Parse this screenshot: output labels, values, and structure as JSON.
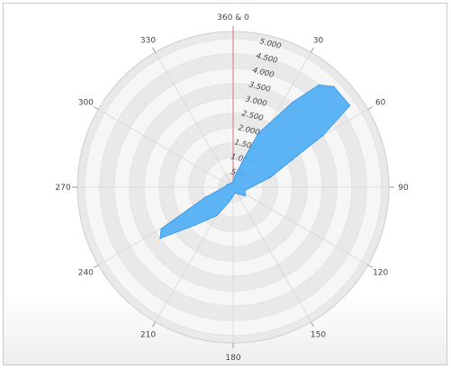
{
  "chart_data": {
    "type": "polar-area",
    "title": "",
    "angle_labels": [
      "360 & 0",
      "30",
      "60",
      "90",
      "120",
      "150",
      "180",
      "210",
      "240",
      "270",
      "300",
      "330"
    ],
    "radial_ticks": [
      500,
      1000,
      1500,
      2000,
      2500,
      3000,
      3500,
      4000,
      4500,
      5000
    ],
    "radial_tick_labels": [
      "500",
      "1.000",
      "1.500",
      "2.000",
      "2.500",
      "3.000",
      "3.500",
      "4.000",
      "4.500",
      "5.000"
    ],
    "rlim": [
      0,
      5250
    ],
    "grid": true,
    "legend": "none",
    "colors": {
      "area_fill": "#55b1f6",
      "area_stroke": "#3d9be8",
      "ring_dark": "#e9e9e9",
      "ring_light": "#f6f6f6",
      "spoke": "#d6d6d6",
      "zero_line": "#d98c8c",
      "text": "#444444"
    },
    "series": [
      {
        "points": [
          {
            "angle": 0,
            "r": 200
          },
          {
            "angle": 10,
            "r": 400
          },
          {
            "angle": 20,
            "r": 900
          },
          {
            "angle": 25,
            "r": 2000
          },
          {
            "angle": 35,
            "r": 3500
          },
          {
            "angle": 40,
            "r": 4500
          },
          {
            "angle": 45,
            "r": 4800
          },
          {
            "angle": 55,
            "r": 4800
          },
          {
            "angle": 60,
            "r": 3500
          },
          {
            "angle": 65,
            "r": 2200
          },
          {
            "angle": 75,
            "r": 1300
          },
          {
            "angle": 90,
            "r": 600
          },
          {
            "angle": 105,
            "r": 400
          },
          {
            "angle": 125,
            "r": 500
          },
          {
            "angle": 140,
            "r": 300
          },
          {
            "angle": 160,
            "r": 200
          },
          {
            "angle": 195,
            "r": 500
          },
          {
            "angle": 210,
            "r": 1100
          },
          {
            "angle": 225,
            "r": 1800
          },
          {
            "angle": 235,
            "r": 3000
          },
          {
            "angle": 240,
            "r": 2800
          },
          {
            "angle": 250,
            "r": 1000
          },
          {
            "angle": 270,
            "r": 300
          },
          {
            "angle": 300,
            "r": 200
          },
          {
            "angle": 330,
            "r": 150
          }
        ]
      }
    ]
  }
}
